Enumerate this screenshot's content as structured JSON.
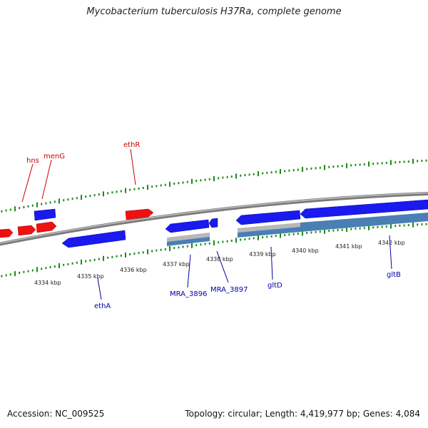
{
  "title": "Mycobacterium tuberculosis H37Ra, complete genome",
  "footer": {
    "accession": "Accession: NC_009525",
    "summary": "Topology: circular; Length: 4,419,977 bp; Genes: 4,084"
  },
  "colors": {
    "forward_gene": "#ee1111",
    "reverse_gene": "#1a1aee",
    "forward_label": "#cc0000",
    "reverse_label": "#0000aa",
    "backbone": "#8a8a8a",
    "tick": "#1a8a1a",
    "rna_feature": "#4a7fb5",
    "pseudo_feature": "#b8b8b8"
  },
  "scale": {
    "unit": "kbp",
    "ticks": [
      {
        "kbp": 4334,
        "label": "4334 kbp"
      },
      {
        "kbp": 4335,
        "label": "4335 kbp"
      },
      {
        "kbp": 4336,
        "label": "4336 kbp"
      },
      {
        "kbp": 4337,
        "label": "4337 kbp"
      },
      {
        "kbp": 4338,
        "label": "4338 kbp"
      },
      {
        "kbp": 4339,
        "label": "4339 kbp"
      },
      {
        "kbp": 4340,
        "label": "4340 kbp"
      },
      {
        "kbp": 4341,
        "label": "4341 kbp"
      },
      {
        "kbp": 4342,
        "label": "4342 kbp"
      }
    ]
  },
  "gene_labels": {
    "forward": [
      {
        "name": "hns"
      },
      {
        "name": "menG"
      },
      {
        "name": "ethR"
      }
    ],
    "reverse": [
      {
        "name": "ethA"
      },
      {
        "name": "MRA_3896"
      },
      {
        "name": "MRA_3897"
      },
      {
        "name": "gltD"
      },
      {
        "name": "gltB"
      }
    ]
  }
}
